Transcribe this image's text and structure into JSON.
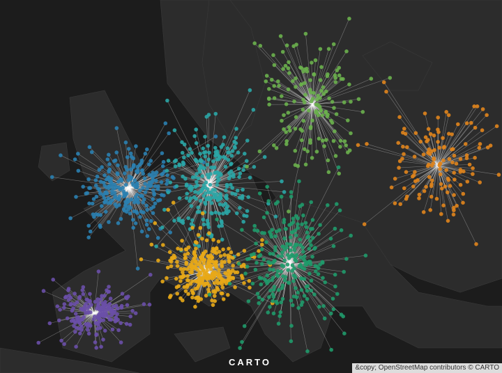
{
  "map": {
    "logo": "CARTO",
    "attribution": "&copy; OpenStreetMap contributors © CARTO",
    "clusters": [
      {
        "color": "#2a7fb0"
      },
      {
        "color": "#2aa6a6"
      },
      {
        "color": "#6ab04c"
      },
      {
        "color": "#e0841c"
      },
      {
        "color": "#e8a917"
      },
      {
        "color": "#1f9a6a"
      },
      {
        "color": "#6a4fa8"
      }
    ]
  }
}
